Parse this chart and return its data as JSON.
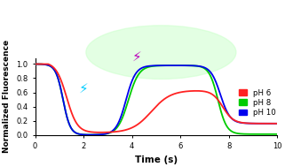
{
  "xlabel": "Time (s)",
  "ylabel": "Normalized Fluorescence",
  "xlim": [
    0,
    10
  ],
  "ylim": [
    0.0,
    1.08
  ],
  "yticks": [
    0.0,
    0.2,
    0.4,
    0.6,
    0.8,
    1.0
  ],
  "colors": {
    "pH6": "#ff2222",
    "pH8": "#00cc00",
    "pH10": "#0000ee"
  },
  "legend": [
    {
      "label": "pH 6",
      "color": "#ff2222"
    },
    {
      "label": "pH 8",
      "color": "#00cc00"
    },
    {
      "label": "pH 10",
      "color": "#0000ee"
    }
  ],
  "background_color": "#ffffff",
  "glow_color": "#ccffcc",
  "cyan_color": "#00ccff",
  "purple_color": "#bb00bb"
}
